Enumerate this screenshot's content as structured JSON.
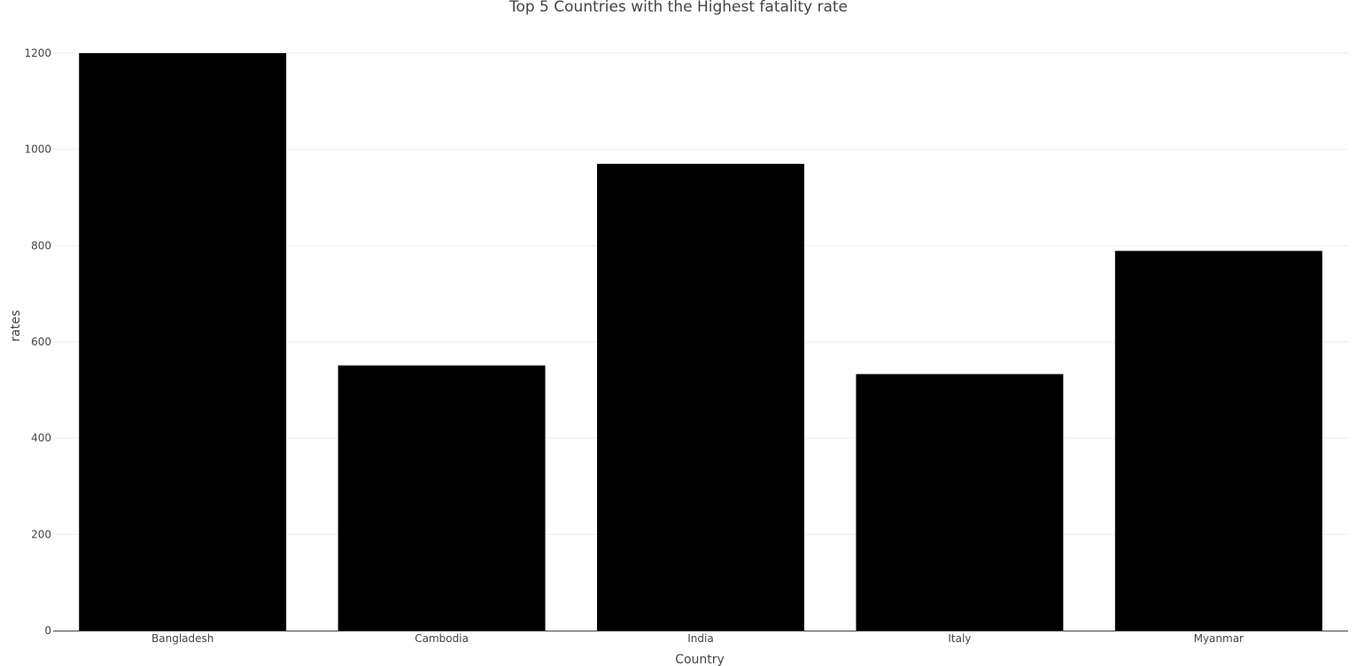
{
  "chart_data": {
    "type": "bar",
    "title": "Top 5 Countries with the Highest fatality rate",
    "xlabel": "Country",
    "ylabel": "rates",
    "categories": [
      "Bangladesh",
      "Cambodia",
      "India",
      "Italy",
      "Myanmar"
    ],
    "values": [
      1200,
      551,
      970,
      533,
      789
    ],
    "ylim": [
      0,
      1200
    ],
    "yticks": [
      0,
      200,
      400,
      600,
      800,
      1000,
      1200
    ],
    "grid": true,
    "bar_color": "#000000",
    "grid_color": "#eeeeee"
  }
}
